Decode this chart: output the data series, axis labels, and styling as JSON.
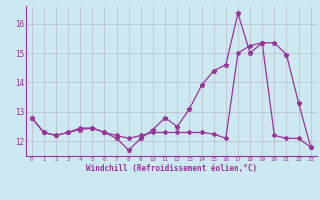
{
  "xlabel": "Windchill (Refroidissement éolien,°C)",
  "x": [
    0,
    1,
    2,
    3,
    4,
    5,
    6,
    7,
    8,
    9,
    10,
    11,
    12,
    13,
    14,
    15,
    16,
    17,
    18,
    19,
    20,
    21,
    22,
    23
  ],
  "line1_y": [
    12.8,
    12.3,
    12.2,
    12.3,
    12.4,
    12.45,
    12.3,
    12.1,
    11.7,
    12.1,
    12.4,
    12.8,
    12.5,
    13.1,
    13.9,
    14.4,
    14.6,
    16.35,
    15.0,
    15.35,
    15.35,
    14.95,
    13.3,
    11.8
  ],
  "line2_y": [
    12.8,
    12.3,
    12.2,
    12.3,
    12.45,
    12.45,
    12.3,
    12.2,
    12.1,
    12.2,
    12.3,
    12.3,
    12.3,
    12.3,
    12.3,
    12.25,
    12.1,
    15.0,
    15.25,
    15.35,
    12.2,
    12.1,
    12.1,
    11.8
  ],
  "color": "#993399",
  "bg_color": "#cce8f0",
  "grid_color": "#bbbbcc",
  "ylim": [
    11.5,
    16.6
  ],
  "xlim": [
    -0.5,
    23.5
  ],
  "yticks": [
    12,
    13,
    14,
    15,
    16
  ],
  "xticks": [
    0,
    1,
    2,
    3,
    4,
    5,
    6,
    7,
    8,
    9,
    10,
    11,
    12,
    13,
    14,
    15,
    16,
    17,
    18,
    19,
    20,
    21,
    22,
    23
  ]
}
